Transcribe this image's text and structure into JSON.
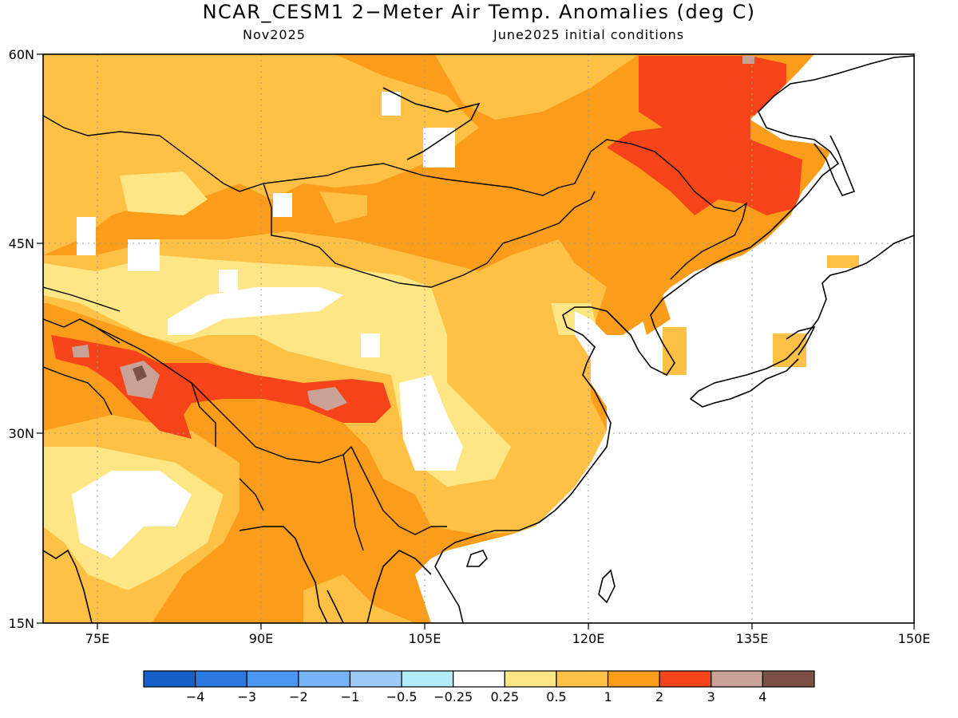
{
  "title": "NCAR_CESM1 2−Meter Air Temp. Anomalies (deg C)",
  "valid_month": "Nov2025",
  "init_label": "June2025 initial conditions",
  "map": {
    "lat_labels": [
      "60N",
      "45N",
      "30N",
      "15N"
    ],
    "lon_labels": [
      "75E",
      "90E",
      "105E",
      "120E",
      "135E",
      "150E"
    ],
    "lon_range": [
      70,
      150
    ],
    "lat_range": [
      15,
      60
    ]
  },
  "colorbar": {
    "labels": [
      "−4",
      "−3",
      "−2",
      "−1",
      "−0.5",
      "−0.25",
      "0.25",
      "0.5",
      "1",
      "2",
      "3",
      "4"
    ],
    "colors": [
      "#1560c8",
      "#2a7ae2",
      "#4a96f0",
      "#76b4f4",
      "#9ccaf7",
      "#b3ecf9",
      "#ffffff",
      "#fee685",
      "#fec045",
      "#fb9d1a",
      "#f5441a",
      "#c9a197",
      "#7a5144"
    ]
  }
}
